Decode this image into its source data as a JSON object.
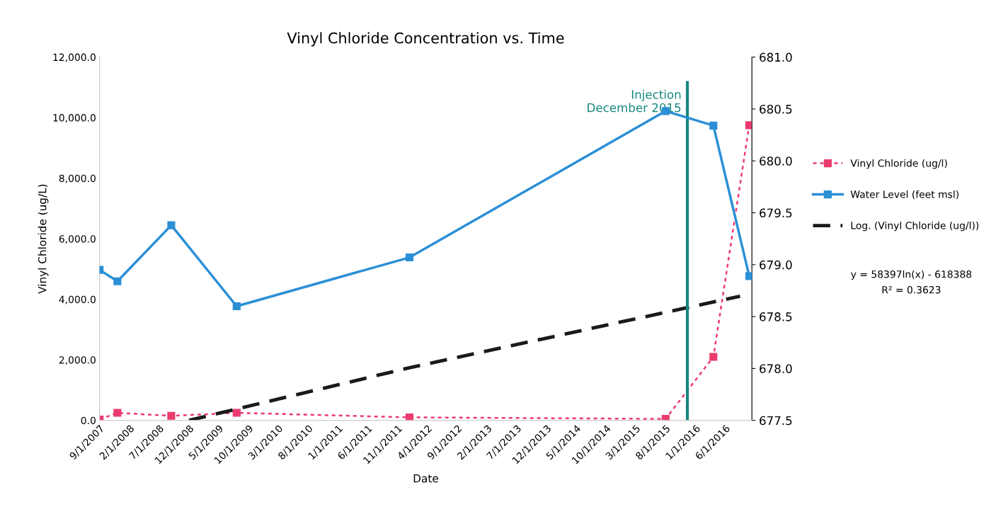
{
  "chart_data": {
    "type": "line",
    "title": "Vinyl Chloride Concentration vs. Time",
    "xlabel": "Date",
    "ylabel": "Vinyl Chloride (ug/L)",
    "x": [
      "2007-09-01",
      "2007-12-01",
      "2008-09-01",
      "2009-08-01",
      "2012-01-01",
      "2015-08-01",
      "2016-04-01",
      "2016-10-01"
    ],
    "series": [
      {
        "name": "Vinyl Chloride (ug/l)",
        "color": "#ec3a6e",
        "marker": "square",
        "line_style": "dotted",
        "values": [
          30,
          250,
          150,
          250,
          100,
          50,
          2100,
          9750
        ]
      },
      {
        "name": "Water Level (feet msl)",
        "color": "#2b8fd6",
        "marker": "square",
        "line_style": "solid",
        "axis": "y2",
        "values": [
          678.95,
          678.84,
          679.38,
          678.6,
          679.07,
          680.48,
          680.34,
          678.89
        ]
      },
      {
        "name": "Log. (Vinyl Chloride (ug/l))",
        "color": "#1a1a1a",
        "marker": "none",
        "line_style": "dashed",
        "x": [
          "2008-12-01",
          "2012-01-01",
          "2015-08-01",
          "2016-08-15"
        ],
        "values": [
          0,
          1740,
          3570,
          4100
        ]
      }
    ],
    "xlim": [
      "2007-09-01",
      "2016-10-15"
    ],
    "xticks": [
      {
        "value": "2007-09-01",
        "label": "9/1/2007"
      },
      {
        "value": "2008-02-01",
        "label": "2/1/2008"
      },
      {
        "value": "2008-07-01",
        "label": "7/1/2008"
      },
      {
        "value": "2008-12-01",
        "label": "12/1/2008"
      },
      {
        "value": "2009-05-01",
        "label": "5/1/2009"
      },
      {
        "value": "2009-10-01",
        "label": "10/1/2009"
      },
      {
        "value": "2010-03-01",
        "label": "3/1/2010"
      },
      {
        "value": "2010-08-01",
        "label": "8/1/2010"
      },
      {
        "value": "2011-01-01",
        "label": "1/1/2011"
      },
      {
        "value": "2011-06-01",
        "label": "6/1/2011"
      },
      {
        "value": "2011-11-01",
        "label": "11/1/2011"
      },
      {
        "value": "2012-04-01",
        "label": "4/1/2012"
      },
      {
        "value": "2012-09-01",
        "label": "9/1/2012"
      },
      {
        "value": "2013-02-01",
        "label": "2/1/2013"
      },
      {
        "value": "2013-07-01",
        "label": "7/1/2013"
      },
      {
        "value": "2013-12-01",
        "label": "12/1/2013"
      },
      {
        "value": "2014-05-01",
        "label": "5/1/2014"
      },
      {
        "value": "2014-10-01",
        "label": "10/1/2014"
      },
      {
        "value": "2015-03-01",
        "label": "3/1/2015"
      },
      {
        "value": "2015-08-01",
        "label": "8/1/2015"
      },
      {
        "value": "2016-01-01",
        "label": "1/1/2016"
      },
      {
        "value": "2016-06-01",
        "label": "6/1/2016"
      }
    ],
    "ylim": [
      0,
      12000
    ],
    "yticks": [
      {
        "value": 0,
        "label": "0.0"
      },
      {
        "value": 2000,
        "label": "2,000.0"
      },
      {
        "value": 4000,
        "label": "4,000.0"
      },
      {
        "value": 6000,
        "label": "6,000.0"
      },
      {
        "value": 8000,
        "label": "8,000.0"
      },
      {
        "value": 10000,
        "label": "10,000.0"
      },
      {
        "value": 12000,
        "label": "12,000.0"
      }
    ],
    "y2lim": [
      677.5,
      681.0
    ],
    "y2ticks": [
      {
        "value": 677.5,
        "label": "677.5"
      },
      {
        "value": 678.0,
        "label": "678.0"
      },
      {
        "value": 678.5,
        "label": "678.5"
      },
      {
        "value": 679.0,
        "label": "679.0"
      },
      {
        "value": 679.5,
        "label": "679.5"
      },
      {
        "value": 680.0,
        "label": "680.0"
      },
      {
        "value": 680.5,
        "label": "680.5"
      },
      {
        "value": 681.0,
        "label": "681.0"
      }
    ],
    "ref_lines": [
      {
        "axis": "x",
        "value": "2015-11-20",
        "label": "Injection\nDecember 2015",
        "color": "#15877f",
        "line_style": "solid"
      }
    ],
    "annotations": [
      "y = 58397ln(x) - 618388",
      "R² = 0.3623"
    ],
    "grid": false,
    "legend": "right"
  }
}
